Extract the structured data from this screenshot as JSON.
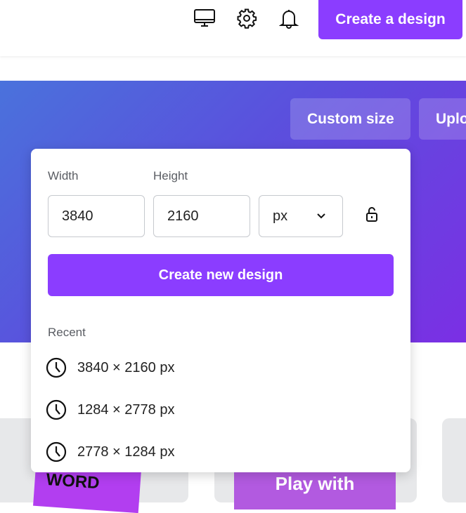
{
  "header": {
    "icons": [
      "desktop-icon",
      "gear-icon",
      "bell-icon"
    ],
    "create_button": "Create a design"
  },
  "hero": {
    "custom_size": "Custom size",
    "upload": "Uplo"
  },
  "popup": {
    "width_label": "Width",
    "height_label": "Height",
    "width_value": "3840",
    "height_value": "2160",
    "unit": "px",
    "lock_icon": "unlock-icon",
    "create_button": "Create new design",
    "recent_label": "Recent",
    "recent": [
      {
        "label": "3840 × 2160 px"
      },
      {
        "label": "1284 × 2778 px"
      },
      {
        "label": "2778 × 1284 px"
      }
    ]
  },
  "thumbnails": [
    {
      "text": "THE WORD"
    },
    {
      "text": "Play with"
    }
  ],
  "colors": {
    "accent": "#8b3dff"
  }
}
